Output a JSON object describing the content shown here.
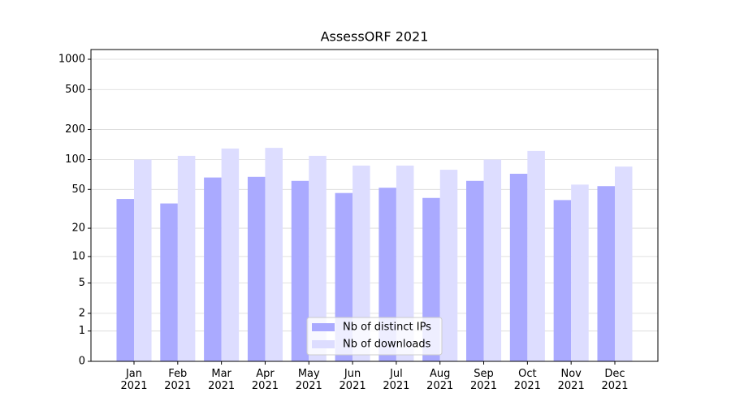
{
  "chart_data": {
    "type": "bar",
    "title": "AssessORF 2021",
    "categories": [
      "Jan 2021",
      "Feb 2021",
      "Mar 2021",
      "Apr 2021",
      "May 2021",
      "Jun 2021",
      "Jul 2021",
      "Aug 2021",
      "Sep 2021",
      "Oct 2021",
      "Nov 2021",
      "Dec 2021"
    ],
    "series": [
      {
        "name": "Nb of distinct IPs",
        "color": "#aaaaff",
        "values": [
          40,
          36,
          66,
          67,
          61,
          46,
          52,
          41,
          61,
          72,
          39,
          54
        ]
      },
      {
        "name": "Nb of downloads",
        "color": "#ddddff",
        "values": [
          100,
          109,
          129,
          131,
          109,
          87,
          87,
          79,
          100,
          122,
          56,
          85
        ]
      }
    ],
    "yscale": "log1p",
    "ylim": [
      0,
      1250
    ],
    "yticks": [
      0,
      1,
      2,
      5,
      10,
      20,
      50,
      100,
      200,
      500,
      1000
    ],
    "grid": true,
    "legend": "lower center"
  }
}
